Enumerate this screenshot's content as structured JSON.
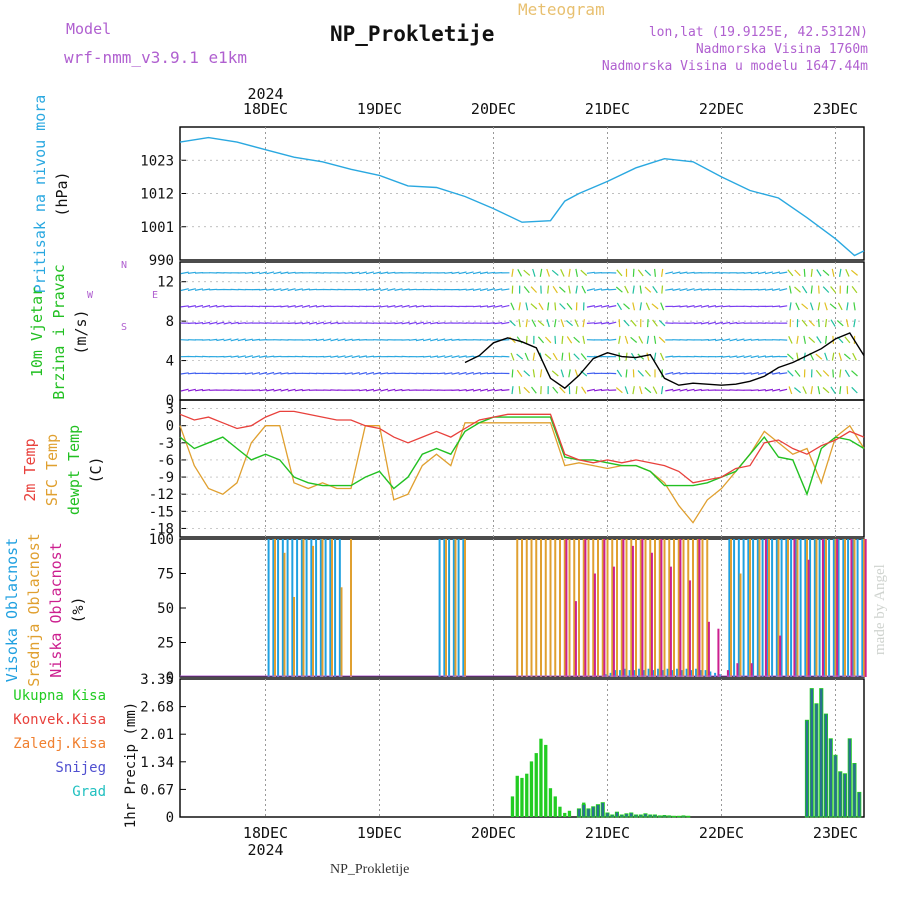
{
  "header": {
    "model_label": "Model",
    "model_name": "wrf-nmm_v3.9.1  e1km",
    "product": "Meteogram",
    "station": "NP_Prokletije",
    "lonlat": "lon,lat (19.9125E, 42.5312N)",
    "altitude": "Nadmorska Visina 1760m",
    "model_altitude": "Nadmorska Visina u modelu 1647.44m",
    "footer": "NP_Prokletije",
    "watermark": "made by Angel"
  },
  "time_axis": {
    "year": "2024",
    "days": [
      "18DEC",
      "19DEC",
      "20DEC",
      "21DEC",
      "22DEC",
      "23DEC"
    ],
    "start_hour": -6,
    "end_hour": 138
  },
  "colors": {
    "pressure": "#2aa8e0",
    "temp2m": "#e8413c",
    "sfc": "#e0a030",
    "dew": "#22c022",
    "wind_speed": "#000000",
    "gust": "#e8413c",
    "high_cloud": "#1fa0e0",
    "mid_cloud": "#e0a030",
    "low_cloud": "#cc1f8f",
    "total_precip": "#22cc22",
    "conv_precip": "#e8413c",
    "frozen_precip": "#f08030",
    "snow": "#5050d0",
    "hail": "#20c0c0"
  },
  "chart_data": [
    {
      "type": "line",
      "panel": "pressure",
      "ylabel_lines": [
        "Pritisak na nivou mora",
        "(hPa)"
      ],
      "yticks": [
        "1023",
        "1012",
        "1001",
        "990"
      ],
      "ylim": [
        990,
        1034
      ],
      "series": [
        {
          "x": [
            -6,
            0,
            6,
            12,
            18,
            24,
            30,
            36,
            42,
            48,
            54,
            60,
            66,
            72,
            75,
            78,
            84,
            90,
            96,
            102,
            108,
            114,
            120,
            126,
            132,
            136,
            138
          ],
          "values": [
            1029,
            1030.5,
            1029,
            1026.5,
            1024,
            1022.5,
            1020,
            1018,
            1014.5,
            1014,
            1011,
            1007,
            1002.5,
            1003,
            1009.5,
            1012,
            1016,
            1020.5,
            1023.5,
            1022.5,
            1017.5,
            1013,
            1010.5,
            1004,
            997,
            991.5,
            993
          ]
        }
      ]
    },
    {
      "type": "line",
      "panel": "wind",
      "ylabel_lines": [
        "10m Vjetar",
        "Brzina i Pravac",
        "(m/s)"
      ],
      "compass": [
        "N",
        "E",
        "S",
        "W"
      ],
      "yticks": [
        "0",
        "4",
        "8",
        "12"
      ],
      "ylim": [
        0,
        14
      ],
      "series": [
        {
          "x": [
            54,
            57,
            60,
            63,
            66,
            69,
            72,
            75,
            78,
            81,
            84,
            87,
            90,
            93,
            96,
            99,
            102,
            105,
            108,
            111,
            114,
            117,
            120,
            123,
            126,
            129,
            132,
            135,
            138
          ],
          "values": [
            3.8,
            4.5,
            5.8,
            6.3,
            5.9,
            5.3,
            2.2,
            1.2,
            2.5,
            4.2,
            4.8,
            4.4,
            4.3,
            4.6,
            2.2,
            1.5,
            1.7,
            1.6,
            1.5,
            1.6,
            1.9,
            2.4,
            3.3,
            3.8,
            4.5,
            5.2,
            6.2,
            6.8,
            4.5
          ]
        }
      ]
    },
    {
      "type": "line",
      "panel": "temperature",
      "ylabel_lines": [
        "2m Temp",
        "SFC Temp",
        "dewpt Temp",
        "(C)"
      ],
      "yticks": [
        "3",
        "0",
        "-3",
        "-6",
        "-9",
        "-12",
        "-15",
        "-18"
      ],
      "ylim": [
        -19.5,
        4.5
      ],
      "series": [
        {
          "name": "2m Temp",
          "x": [
            -6,
            -3,
            0,
            3,
            6,
            9,
            12,
            15,
            18,
            21,
            24,
            27,
            30,
            33,
            36,
            39,
            42,
            45,
            48,
            51,
            54,
            57,
            60,
            63,
            66,
            69,
            72,
            75,
            78,
            81,
            84,
            87,
            90,
            93,
            96,
            99,
            102,
            105,
            108,
            111,
            114,
            117,
            120,
            123,
            126,
            129,
            132,
            135,
            138
          ],
          "values": [
            2,
            1,
            1.5,
            0.5,
            -0.5,
            0,
            1.5,
            2.5,
            2.5,
            2,
            1.5,
            1,
            1,
            0,
            -0.5,
            -2,
            -3,
            -2,
            -1,
            -2,
            -0.5,
            1,
            1.5,
            2,
            2,
            2,
            2,
            -5,
            -6,
            -6.5,
            -6,
            -6.5,
            -6,
            -6.5,
            -7,
            -8,
            -10,
            -9.5,
            -9,
            -7.5,
            -7,
            -3,
            -2.5,
            -4,
            -5,
            -3.5,
            -2.5,
            -1,
            -2
          ]
        },
        {
          "name": "SFC Temp",
          "x": [
            -6,
            -3,
            0,
            3,
            6,
            9,
            12,
            15,
            18,
            21,
            24,
            27,
            30,
            33,
            36,
            39,
            42,
            45,
            48,
            51,
            54,
            57,
            60,
            63,
            66,
            69,
            72,
            75,
            78,
            81,
            84,
            87,
            90,
            93,
            96,
            99,
            102,
            105,
            108,
            111,
            114,
            117,
            120,
            123,
            126,
            129,
            132,
            135,
            138
          ],
          "values": [
            0,
            -7,
            -11,
            -12,
            -10,
            -3,
            0,
            0,
            -10,
            -11,
            -10,
            -11,
            -11,
            0,
            0,
            -13,
            -12,
            -7,
            -5,
            -7,
            0.5,
            0.5,
            0.5,
            0.5,
            0.5,
            0.5,
            0.5,
            -7,
            -6.5,
            -7,
            -7.5,
            -7,
            -7,
            -8,
            -10,
            -14,
            -17,
            -13,
            -11,
            -8,
            -5,
            -1,
            -3,
            -5,
            -4,
            -10,
            -2,
            0,
            -4
          ]
        },
        {
          "name": "dewpt Temp",
          "x": [
            -6,
            -3,
            0,
            3,
            6,
            9,
            12,
            15,
            18,
            21,
            24,
            27,
            30,
            33,
            36,
            39,
            42,
            45,
            48,
            51,
            54,
            57,
            60,
            63,
            66,
            69,
            72,
            75,
            78,
            81,
            84,
            87,
            90,
            93,
            96,
            99,
            102,
            105,
            108,
            111,
            114,
            117,
            120,
            123,
            126,
            129,
            132,
            135,
            138
          ],
          "values": [
            -2,
            -4,
            -3,
            -2,
            -4,
            -6,
            -5,
            -6,
            -9,
            -10,
            -10.5,
            -10.5,
            -10.5,
            -9,
            -8,
            -11,
            -9,
            -5,
            -4,
            -5,
            -1,
            0.5,
            1.5,
            1.5,
            1.5,
            1.5,
            1.5,
            -5.5,
            -6,
            -6,
            -6.5,
            -7,
            -7,
            -8,
            -10.5,
            -10.5,
            -10.5,
            -10,
            -9,
            -8,
            -5,
            -2,
            -5.5,
            -6,
            -12,
            -4,
            -2,
            -2.5,
            -4
          ]
        }
      ]
    },
    {
      "type": "bar",
      "panel": "cloud",
      "ylabel_lines": [
        "Visoka Oblacnost",
        "Srednja Oblacnost",
        "Niska  Oblacnost",
        "(%)"
      ],
      "yticks": [
        "0",
        "25",
        "50",
        "75",
        "100"
      ],
      "ylim": [
        0,
        100
      ],
      "series": [
        {
          "name": "Visoka Oblacnost",
          "x": [
            13,
            14,
            15,
            16,
            17,
            18,
            19,
            20,
            21,
            22,
            23,
            24,
            25,
            26,
            27,
            28,
            49,
            50,
            51,
            52,
            53,
            54,
            75,
            76,
            77,
            78,
            79,
            80,
            81,
            82,
            83,
            84,
            85,
            86,
            87,
            88,
            89,
            90,
            91,
            92,
            93,
            94,
            95,
            96,
            97,
            98,
            99,
            100,
            101,
            102,
            103,
            104,
            105,
            106,
            107,
            108,
            110,
            111,
            112,
            113,
            114,
            115,
            116,
            117,
            118,
            119,
            120,
            121,
            122,
            123,
            124,
            125,
            126,
            127,
            128,
            129,
            130,
            131,
            132,
            133,
            134,
            135,
            136,
            137,
            138
          ],
          "values": [
            100,
            100,
            100,
            100,
            100,
            100,
            100,
            100,
            100,
            100,
            100,
            100,
            100,
            100,
            100,
            100,
            100,
            100,
            100,
            100,
            100,
            100,
            0,
            0,
            0,
            0,
            0,
            0,
            0,
            0,
            0,
            2,
            3,
            5,
            5,
            6,
            5,
            5,
            6,
            5,
            6,
            5,
            6,
            5,
            6,
            5,
            6,
            5,
            6,
            5,
            6,
            5,
            5,
            4,
            3,
            2,
            100,
            100,
            100,
            100,
            100,
            100,
            100,
            100,
            100,
            100,
            100,
            100,
            100,
            100,
            100,
            100,
            100,
            100,
            100,
            100,
            100,
            100,
            100,
            100,
            100,
            100,
            100,
            100,
            100
          ]
        },
        {
          "name": "Srednja Oblacnost",
          "x": [
            14,
            16,
            18,
            20,
            22,
            24,
            26,
            28,
            30,
            50,
            52,
            54,
            65,
            66,
            67,
            68,
            69,
            70,
            71,
            72,
            73,
            74,
            75,
            76,
            77,
            78,
            79,
            80,
            81,
            82,
            83,
            84,
            85,
            86,
            87,
            88,
            89,
            90,
            91,
            92,
            93,
            94,
            95,
            96,
            97,
            98,
            99,
            100,
            101,
            102,
            103,
            104,
            105,
            110,
            112,
            114,
            116,
            118,
            120,
            122,
            124,
            126,
            128,
            130,
            132,
            134,
            136,
            138
          ],
          "values": [
            100,
            90,
            58,
            100,
            95,
            100,
            100,
            65,
            100,
            100,
            100,
            100,
            100,
            100,
            100,
            100,
            100,
            100,
            100,
            100,
            100,
            100,
            100,
            100,
            100,
            100,
            100,
            100,
            100,
            100,
            100,
            100,
            100,
            100,
            100,
            100,
            100,
            100,
            100,
            100,
            100,
            100,
            100,
            100,
            100,
            100,
            100,
            100,
            100,
            100,
            100,
            100,
            100,
            100,
            75,
            100,
            100,
            100,
            100,
            100,
            100,
            100,
            100,
            100,
            100,
            100,
            100,
            100
          ]
        },
        {
          "name": "Niska  Oblacnost",
          "x": [
            -6,
            0,
            6,
            12,
            18,
            24,
            30,
            36,
            42,
            48,
            54,
            60,
            66,
            72,
            75,
            77,
            79,
            81,
            83,
            85,
            87,
            89,
            91,
            93,
            95,
            97,
            99,
            101,
            103,
            105,
            107,
            109,
            111,
            114,
            117,
            120,
            123,
            126,
            129,
            132,
            135,
            138
          ],
          "values": [
            0,
            0,
            0,
            0,
            0,
            0,
            0,
            0,
            0,
            0,
            0,
            0,
            0,
            0,
            100,
            55,
            100,
            75,
            100,
            80,
            100,
            95,
            100,
            90,
            100,
            80,
            100,
            70,
            100,
            40,
            35,
            5,
            10,
            10,
            100,
            30,
            100,
            85,
            100,
            100,
            100,
            100
          ]
        }
      ]
    },
    {
      "type": "bar",
      "panel": "precip",
      "ylabel_lines": [
        "1hr Precip (mm)"
      ],
      "legend": [
        "Ukupna Kisa",
        "Konvek.Kisa",
        "Zaledj.Kisa",
        "Snijeg",
        "Grad"
      ],
      "yticks": [
        "0",
        "0.67",
        "1.34",
        "2.01",
        "2.68",
        "3.35"
      ],
      "ylim": [
        0,
        3.35
      ],
      "series": [
        {
          "name": "Ukupna Kisa",
          "x": [
            64,
            65,
            66,
            67,
            68,
            69,
            70,
            71,
            72,
            73,
            74,
            75,
            76,
            77,
            78,
            79,
            80,
            81,
            82,
            83,
            84,
            85,
            86,
            87,
            88,
            89,
            90,
            91,
            92,
            93,
            94,
            95,
            96,
            97,
            98,
            99,
            100,
            101
          ],
          "values": [
            0.5,
            1.0,
            0.95,
            1.05,
            1.35,
            1.55,
            1.9,
            1.75,
            0.7,
            0.5,
            0.25,
            0.1,
            0.15,
            0,
            0.2,
            0.35,
            0.2,
            0.25,
            0.3,
            0.35,
            0.1,
            0.05,
            0.12,
            0.05,
            0.08,
            0.1,
            0.05,
            0.05,
            0.08,
            0.05,
            0.05,
            0.03,
            0.04,
            0.03,
            0.02,
            0.02,
            0.03,
            0.02
          ]
        },
        {
          "name": "Snijeg",
          "x": [
            77,
            78,
            79,
            80,
            81,
            82,
            83,
            84,
            85,
            86,
            87,
            88,
            89,
            90,
            91,
            92,
            93,
            94,
            95,
            96,
            97,
            98,
            99,
            100,
            101,
            126,
            127,
            128,
            129,
            130,
            131,
            132,
            133,
            134,
            135,
            136,
            137
          ],
          "values": [
            0,
            0.2,
            0.3,
            0.2,
            0.25,
            0.3,
            0.35,
            0.1,
            0.05,
            0.12,
            0.05,
            0.08,
            0.1,
            0.05,
            0.05,
            0.08,
            0.05,
            0.05,
            0.03,
            0.04,
            0.03,
            0.02,
            0.02,
            0.03,
            0.02,
            2.35,
            3.12,
            2.75,
            3.12,
            2.5,
            1.9,
            1.5,
            1.1,
            1.05,
            1.9,
            1.3,
            0.6
          ]
        }
      ]
    }
  ]
}
